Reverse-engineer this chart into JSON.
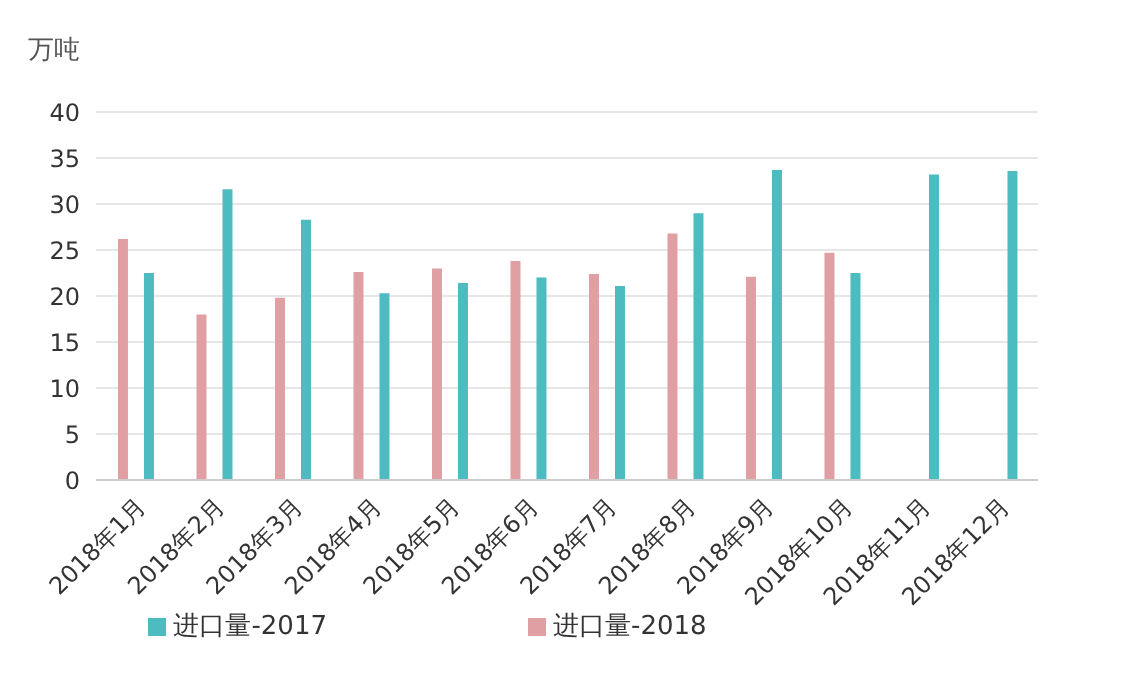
{
  "chart_data": {
    "type": "bar",
    "ylabel": "万吨",
    "categories": [
      "2018年1月",
      "2018年2月",
      "2018年3月",
      "2018年4月",
      "2018年5月",
      "2018年6月",
      "2018年7月",
      "2018年8月",
      "2018年9月",
      "2018年10月",
      "2018年11月",
      "2018年12月"
    ],
    "series": [
      {
        "name": "进口量-2018",
        "color": "#e0a0a3",
        "values": [
          26.2,
          18,
          19.8,
          22.6,
          23,
          23.8,
          22.4,
          26.8,
          22.1,
          24.7,
          null,
          null
        ]
      },
      {
        "name": "进口量-2017",
        "color": "#4cbcc0",
        "values": [
          22.5,
          31.6,
          28.3,
          20.3,
          21.4,
          22,
          21.1,
          29,
          33.7,
          22.5,
          33.2,
          33.6
        ]
      }
    ],
    "ylim": [
      0,
      40
    ],
    "yticks": [
      0,
      5,
      10,
      15,
      20,
      25,
      30,
      35,
      40
    ],
    "grid": "y",
    "legend": "bottom"
  }
}
